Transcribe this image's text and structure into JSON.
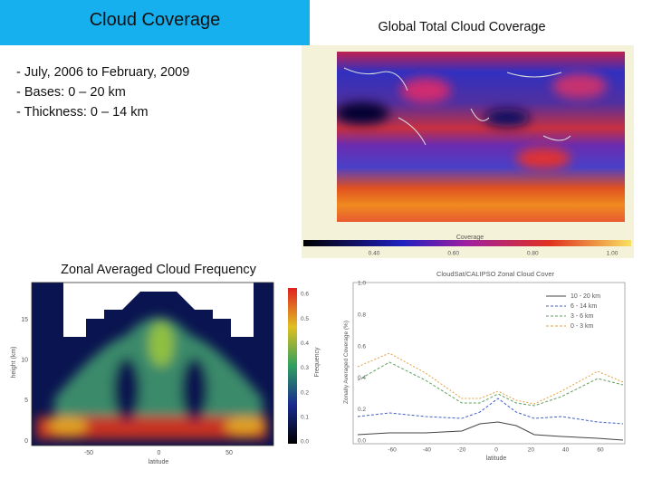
{
  "header": {
    "title": "Cloud Coverage"
  },
  "bullets": [
    "- July, 2006 to February, 2009",
    "- Bases: 0 – 20 km",
    "- Thickness: 0 – 14 km"
  ],
  "map": {
    "title": "Global Total Cloud Coverage",
    "colorbar_label": "Coverage",
    "colorbar_ticks": [
      "0.40",
      "0.60",
      "0.80",
      "1.00"
    ]
  },
  "zonal": {
    "title": "Zonal Averaged Cloud Frequency",
    "y_label": "height (km)",
    "x_label": "latitude",
    "colorbar_label": "Frequency",
    "y_ticks": [
      "15",
      "10",
      "5",
      "0"
    ],
    "x_ticks": [
      "-50",
      "0",
      "50"
    ],
    "colorbar_ticks": [
      "0.6",
      "0.5",
      "0.4",
      "0.3",
      "0.2",
      "0.1",
      "0.0"
    ]
  },
  "zonal_cover": {
    "title": "CloudSat/CALIPSO Zonal Cloud Cover",
    "y_label": "Zonally Averaged Coverage (%)",
    "x_label": "latitude",
    "legend": [
      "10 - 20 km",
      "6 - 14 km",
      "3 - 6 km",
      "0 - 3 km"
    ],
    "y_ticks": [
      "1.0",
      "0.8",
      "0.6",
      "0.4",
      "0.2",
      "0.0"
    ],
    "x_ticks": [
      "-60",
      "-40",
      "-20",
      "0",
      "20",
      "40",
      "60"
    ]
  }
}
